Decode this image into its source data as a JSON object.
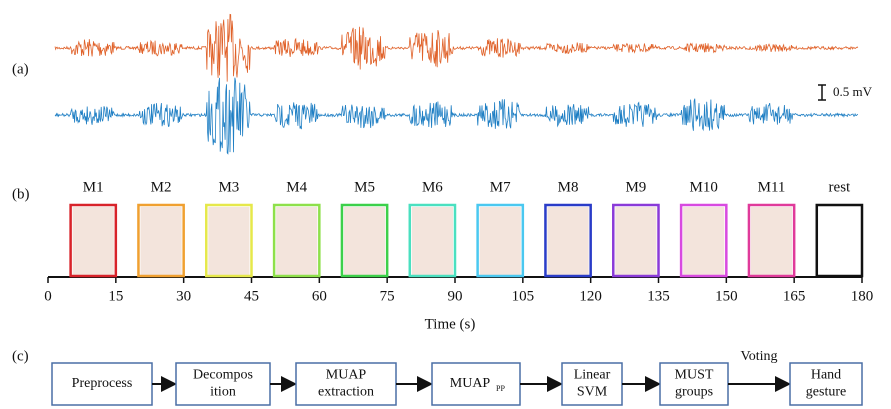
{
  "panels": {
    "a": "(a)",
    "b": "(b)",
    "c": "(c)"
  },
  "signals": {
    "scale_label": "0.5 mV",
    "colors": [
      "#e0622a",
      "#1f7fc4"
    ]
  },
  "timeline": {
    "xlabel": "Time (s)",
    "xlim": [
      0,
      180
    ],
    "xticks": [
      0,
      15,
      30,
      45,
      60,
      75,
      90,
      105,
      120,
      135,
      150,
      165,
      180
    ],
    "gestures": [
      {
        "label": "M1",
        "color": "#d8232a"
      },
      {
        "label": "M2",
        "color": "#f0a030"
      },
      {
        "label": "M3",
        "color": "#e6e84a"
      },
      {
        "label": "M4",
        "color": "#8ee04a"
      },
      {
        "label": "M5",
        "color": "#3cd04a"
      },
      {
        "label": "M6",
        "color": "#4ae0c0"
      },
      {
        "label": "M7",
        "color": "#4ac8f0"
      },
      {
        "label": "M8",
        "color": "#2a3cc8"
      },
      {
        "label": "M9",
        "color": "#8a3ad8"
      },
      {
        "label": "M10",
        "color": "#d84ae0"
      },
      {
        "label": "M11",
        "color": "#e03a9a"
      },
      {
        "label": "rest",
        "color": "#111111"
      }
    ]
  },
  "flow": {
    "nodes": [
      {
        "lines": [
          "Preprocess"
        ]
      },
      {
        "lines": [
          "Decompos",
          "ition"
        ]
      },
      {
        "lines": [
          "MUAP",
          "extraction"
        ]
      },
      {
        "lines": [
          "MUAP"
        ],
        "subscript": "PP"
      },
      {
        "lines": [
          "Linear",
          "SVM"
        ]
      },
      {
        "lines": [
          "MUST",
          "groups"
        ]
      },
      {
        "lines": [
          "Hand",
          "gesture"
        ]
      }
    ],
    "edge_label": "Voting"
  }
}
